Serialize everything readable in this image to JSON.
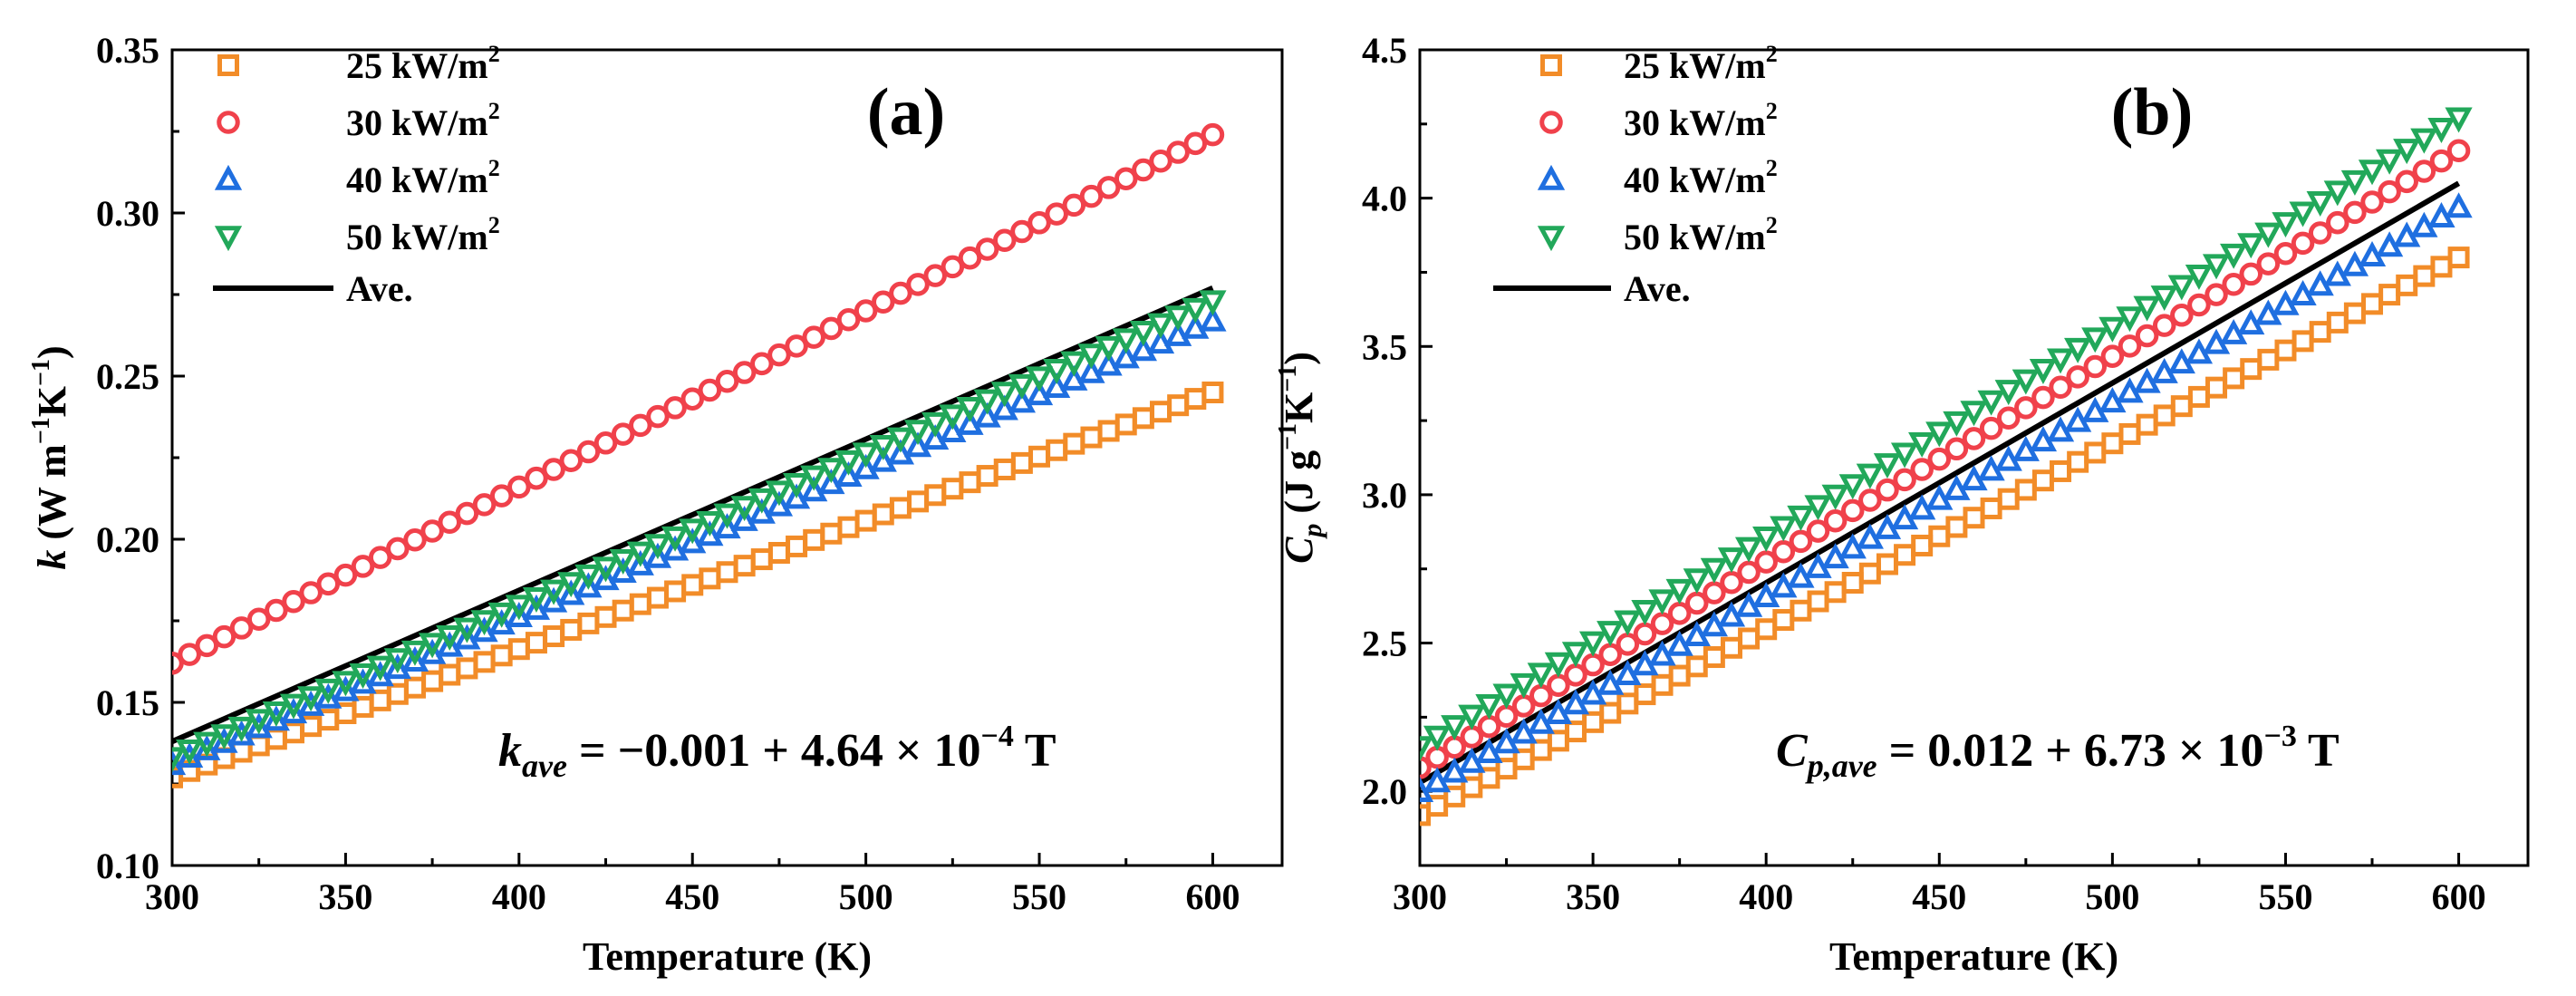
{
  "chart_data": [
    {
      "type": "scatter",
      "panel_label": "(a)",
      "xlabel": "Temperature (K)",
      "ylabel": {
        "var": "k",
        "open": " (W m",
        "e1": "−1",
        "mid": "K",
        "e2": "−1",
        "close": ")"
      },
      "xlim": [
        300,
        620
      ],
      "ylim": [
        0.1,
        0.35
      ],
      "xticks": [
        300,
        350,
        400,
        450,
        500,
        550,
        600
      ],
      "yticks": [
        0.1,
        0.15,
        0.2,
        0.25,
        0.3,
        0.35
      ],
      "ytick_labels": [
        "0.10",
        "0.15",
        "0.20",
        "0.25",
        "0.30",
        "0.35"
      ],
      "x_start": 300,
      "x_end": 600,
      "x_step": 5,
      "series": [
        {
          "name": "25 kW/m",
          "sup": "2",
          "marker": "square",
          "color": "#F28C28",
          "y_start": 0.127,
          "y_end": 0.245
        },
        {
          "name": "30 kW/m",
          "sup": "2",
          "marker": "circle",
          "color": "#F0414B",
          "y_start": 0.162,
          "y_end": 0.324
        },
        {
          "name": "40 kW/m",
          "sup": "2",
          "marker": "triangle-up",
          "color": "#1F6FE0",
          "y_start": 0.131,
          "y_end": 0.267
        },
        {
          "name": "50 kW/m",
          "sup": "2",
          "marker": "triangle-down",
          "color": "#22A85A",
          "y_start": 0.133,
          "y_end": 0.273
        }
      ],
      "average": {
        "name": "Ave.",
        "color": "#000000",
        "y_start": 0.138,
        "y_end": 0.277
      },
      "equation": {
        "var": "k",
        "sub": "ave",
        "text": " = −0.001 + 4.64 × 10",
        "exp": "−4",
        "tail": " T"
      }
    },
    {
      "type": "scatter",
      "panel_label": "(b)",
      "xlabel": "Temperature (K)",
      "ylabel": {
        "var": "C",
        "sub": "p",
        "open": " (J g",
        "e1": "−1",
        "mid": "K",
        "e2": "−1",
        "close": ")"
      },
      "xlim": [
        300,
        620
      ],
      "ylim": [
        1.75,
        4.5
      ],
      "xticks": [
        300,
        350,
        400,
        450,
        500,
        550,
        600
      ],
      "yticks": [
        2.0,
        2.5,
        3.0,
        3.5,
        4.0,
        4.5
      ],
      "ytick_labels": [
        "2.0",
        "2.5",
        "3.0",
        "3.5",
        "4.0",
        "4.5"
      ],
      "x_start": 300,
      "x_end": 600,
      "x_step": 5,
      "series": [
        {
          "name": "25 kW/m",
          "sup": "2",
          "marker": "square",
          "color": "#F28C28",
          "y_start": 1.92,
          "y_end": 3.8
        },
        {
          "name": "30 kW/m",
          "sup": "2",
          "marker": "circle",
          "color": "#F0414B",
          "y_start": 2.08,
          "y_end": 4.16
        },
        {
          "name": "40 kW/m",
          "sup": "2",
          "marker": "triangle-up",
          "color": "#1F6FE0",
          "y_start": 2.0,
          "y_end": 3.97
        },
        {
          "name": "50 kW/m",
          "sup": "2",
          "marker": "triangle-down",
          "color": "#22A85A",
          "y_start": 2.15,
          "y_end": 4.27
        }
      ],
      "average": {
        "name": "Ave.",
        "color": "#000000",
        "y_start": 2.03,
        "y_end": 4.05
      },
      "equation": {
        "var": "C",
        "sub": "p,ave",
        "text": " = 0.012 + 6.73 × 10",
        "exp": "−3",
        "tail": " T"
      }
    }
  ]
}
